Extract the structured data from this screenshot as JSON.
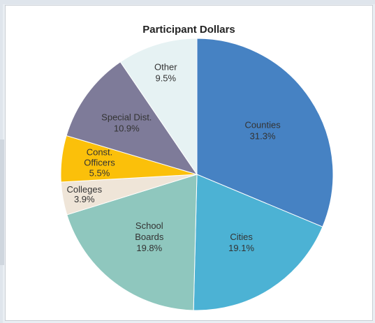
{
  "chart_data": {
    "type": "pie",
    "title": "Participant Dollars",
    "start_angle_deg": 0,
    "direction": "clockwise",
    "slices": [
      {
        "label_lines": [
          "Counties"
        ],
        "value": 31.3,
        "value_text": "31.3%",
        "color": "#4682c3"
      },
      {
        "label_lines": [
          "Cities"
        ],
        "value": 19.1,
        "value_text": "19.1%",
        "color": "#4cb2d4"
      },
      {
        "label_lines": [
          "School",
          "Boards"
        ],
        "value": 19.8,
        "value_text": "19.8%",
        "color": "#8fc7be"
      },
      {
        "label_lines": [
          "Colleges"
        ],
        "value": 3.9,
        "value_text": "3.9%",
        "color": "#efe5d8"
      },
      {
        "label_lines": [
          "Const.",
          "Officers"
        ],
        "value": 5.5,
        "value_text": "5.5%",
        "color": "#fbc00a"
      },
      {
        "label_lines": [
          "Special Dist."
        ],
        "value": 10.9,
        "value_text": "10.9%",
        "color": "#7e7b99"
      },
      {
        "label_lines": [
          "Other"
        ],
        "value": 9.5,
        "value_text": "9.5%",
        "color": "#e6f2f3"
      }
    ]
  }
}
